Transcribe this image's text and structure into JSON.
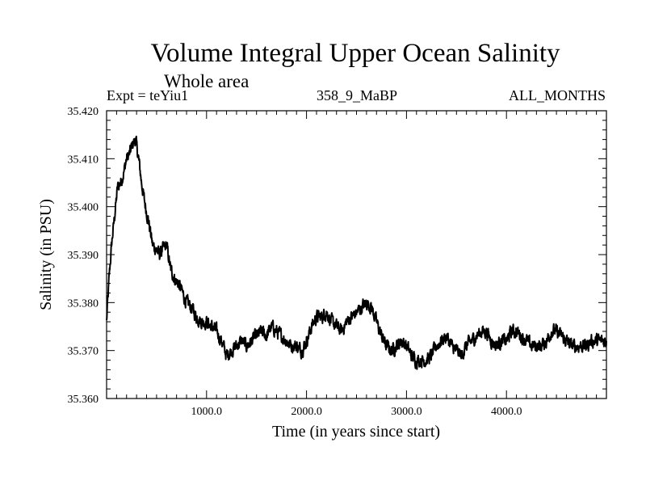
{
  "chart_data": {
    "type": "line",
    "title": "Volume Integral Upper Ocean Salinity",
    "subtitle": "Whole area",
    "expt_label": "Expt = teYiu1",
    "run_label": "358_9_MaBP",
    "months_label": "ALL_MONTHS",
    "xlabel": "Time (in years since start)",
    "ylabel": "Salinity (in PSU)",
    "xlim": [
      0,
      5000
    ],
    "ylim": [
      35.36,
      35.42
    ],
    "xticks": [
      1000,
      2000,
      3000,
      4000
    ],
    "xtick_labels": [
      "1000.0",
      "2000.0",
      "3000.0",
      "4000.0"
    ],
    "yticks": [
      35.36,
      35.37,
      35.38,
      35.39,
      35.4,
      35.41,
      35.42
    ],
    "ytick_labels": [
      "35.360",
      "35.370",
      "35.380",
      "35.390",
      "35.400",
      "35.410",
      "35.420"
    ],
    "series": [
      {
        "name": "salinity",
        "x": [
          0,
          25,
          50,
          80,
          110,
          140,
          170,
          200,
          230,
          260,
          290,
          320,
          350,
          380,
          420,
          460,
          500,
          530,
          560,
          600,
          640,
          680,
          720,
          760,
          800,
          850,
          900,
          950,
          1000,
          1050,
          1100,
          1150,
          1200,
          1250,
          1300,
          1350,
          1400,
          1450,
          1500,
          1550,
          1600,
          1650,
          1700,
          1750,
          1800,
          1850,
          1900,
          1950,
          2000,
          2050,
          2100,
          2150,
          2200,
          2250,
          2300,
          2350,
          2400,
          2450,
          2500,
          2550,
          2600,
          2650,
          2700,
          2750,
          2800,
          2850,
          2900,
          2950,
          3000,
          3050,
          3100,
          3150,
          3200,
          3250,
          3300,
          3350,
          3400,
          3450,
          3500,
          3550,
          3600,
          3650,
          3700,
          3750,
          3800,
          3850,
          3900,
          3950,
          4000,
          4050,
          4100,
          4150,
          4200,
          4250,
          4300,
          4350,
          4400,
          4450,
          4500,
          4550,
          4600,
          4650,
          4700,
          4750,
          4800,
          4850,
          4900,
          4950,
          5000
        ],
        "values": [
          35.376,
          35.385,
          35.392,
          35.398,
          35.404,
          35.405,
          35.407,
          35.41,
          35.411,
          35.413,
          35.414,
          35.41,
          35.405,
          35.401,
          35.397,
          35.392,
          35.391,
          35.39,
          35.391,
          35.392,
          35.387,
          35.385,
          35.384,
          35.382,
          35.38,
          35.379,
          35.377,
          35.376,
          35.376,
          35.375,
          35.374,
          35.372,
          35.369,
          35.37,
          35.371,
          35.372,
          35.371,
          35.372,
          35.373,
          35.374,
          35.373,
          35.375,
          35.374,
          35.373,
          35.372,
          35.371,
          35.371,
          35.37,
          35.372,
          35.375,
          35.377,
          35.377,
          35.378,
          35.376,
          35.375,
          35.374,
          35.376,
          35.377,
          35.378,
          35.379,
          35.38,
          35.379,
          35.376,
          35.373,
          35.371,
          35.37,
          35.371,
          35.372,
          35.371,
          35.369,
          35.368,
          35.368,
          35.368,
          35.369,
          35.371,
          35.372,
          35.373,
          35.371,
          35.37,
          35.369,
          35.371,
          35.372,
          35.373,
          35.374,
          35.374,
          35.372,
          35.371,
          35.372,
          35.372,
          35.374,
          35.374,
          35.373,
          35.372,
          35.371,
          35.371,
          35.371,
          35.372,
          35.374,
          35.374,
          35.373,
          35.372,
          35.371,
          35.371,
          35.371,
          35.371,
          35.372,
          35.372,
          35.372,
          35.372
        ]
      }
    ]
  }
}
